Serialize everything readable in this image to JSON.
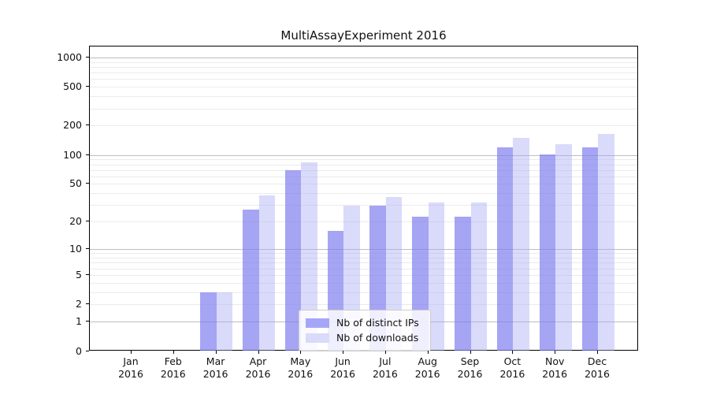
{
  "chart_data": {
    "type": "bar",
    "title": "MultiAssayExperiment 2016",
    "categories": [
      "Jan",
      "Feb",
      "Mar",
      "Apr",
      "May",
      "Jun",
      "Jul",
      "Aug",
      "Sep",
      "Oct",
      "Nov",
      "Dec"
    ],
    "year_label": "2016",
    "series": [
      {
        "name": "Nb of distinct IPs",
        "values": [
          0,
          0,
          3,
          27,
          70,
          16,
          30,
          23,
          23,
          120,
          103,
          120
        ]
      },
      {
        "name": "Nb of downloads",
        "values": [
          0,
          0,
          3,
          38,
          85,
          30,
          37,
          32,
          32,
          150,
          130,
          165
        ]
      }
    ],
    "yscale": "log1p",
    "ylim": [
      0,
      1270
    ],
    "ytick_values": [
      0,
      1,
      2,
      5,
      10,
      20,
      50,
      100,
      200,
      500,
      1000
    ],
    "ytick_labels": [
      "0",
      "1",
      "2",
      "5",
      "10",
      "20",
      "50",
      "100",
      "200",
      "500",
      "1000"
    ],
    "grid_major_values": [
      1,
      10,
      100,
      1000
    ],
    "grid_minor_values": [
      2,
      3,
      4,
      5,
      6,
      7,
      8,
      9,
      20,
      30,
      40,
      50,
      60,
      70,
      80,
      90,
      200,
      300,
      400,
      500,
      600,
      700,
      800,
      900
    ],
    "grid": "on",
    "legend_position": "lower-center-inside",
    "xlabel": "",
    "ylabel": "",
    "colors": {
      "ips_bar": "rgba(127,127,240,0.70)",
      "downloads_bar": "rgba(166,166,245,0.42)",
      "ips_swatch": "#a6a6f8",
      "downloads_swatch": "#dadafb",
      "grid_major": "#bdbdbd",
      "grid_minor": "#ebebeb",
      "axis_line": "#000000"
    }
  },
  "legend": {
    "items": [
      {
        "label": "Nb of distinct IPs"
      },
      {
        "label": "Nb of downloads"
      }
    ]
  }
}
